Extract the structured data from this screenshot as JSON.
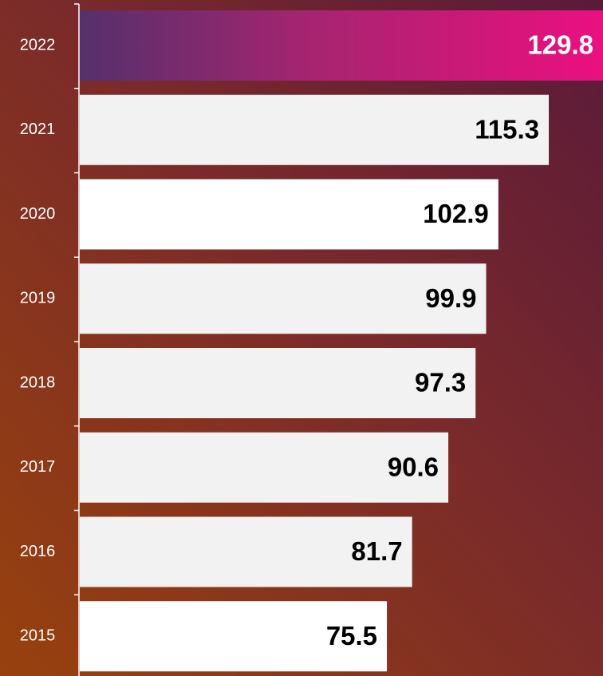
{
  "chart_data": {
    "type": "barh",
    "categories": [
      "2022",
      "2021",
      "2020",
      "2019",
      "2018",
      "2017",
      "2016",
      "2015"
    ],
    "values": [
      129.8,
      115.3,
      102.9,
      99.9,
      97.3,
      90.6,
      81.7,
      75.5
    ],
    "colors": [
      "#ec0f80",
      "#f2f2f2",
      "#ffffff",
      "#f2f2f2",
      "#f2f2f2",
      "#f2f2f2",
      "#f2f2f2",
      "#ffffff"
    ],
    "xlim": [
      0,
      130
    ]
  }
}
